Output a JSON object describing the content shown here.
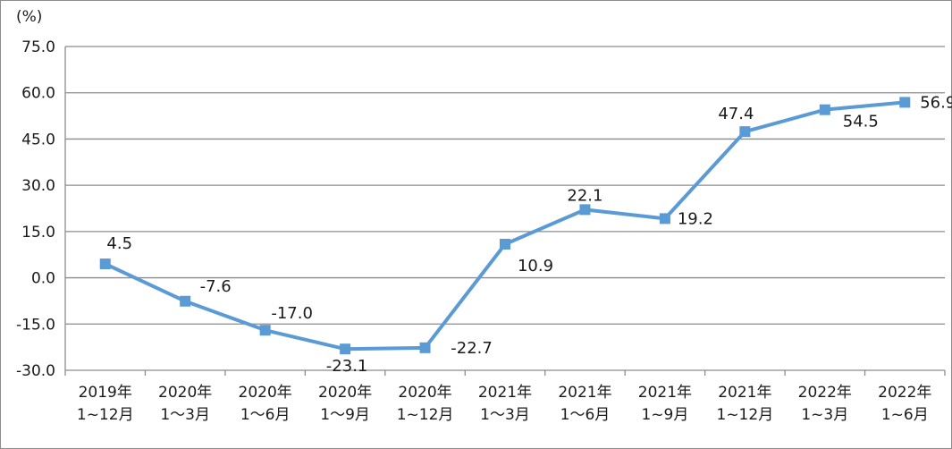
{
  "chart_data": {
    "type": "line",
    "unit_label": "(%)",
    "categories": [
      [
        "2019年",
        "1~12月"
      ],
      [
        "2020年",
        "1～3月"
      ],
      [
        "2020年",
        "1～6月"
      ],
      [
        "2020年",
        "1～9月"
      ],
      [
        "2020年",
        "1~12月"
      ],
      [
        "2021年",
        "1～3月"
      ],
      [
        "2021年",
        "1～6月"
      ],
      [
        "2021年",
        "1~9月"
      ],
      [
        "2021年",
        "1~12月"
      ],
      [
        "2022年",
        "1~3月"
      ],
      [
        "2022年",
        "1~6月"
      ]
    ],
    "values": [
      4.5,
      -7.6,
      -17.0,
      -23.1,
      -22.7,
      10.9,
      22.1,
      19.2,
      47.4,
      54.5,
      56.9
    ],
    "value_labels": [
      "4.5",
      "-7.6",
      "-17.0",
      "-23.1",
      "-22.7",
      "10.9",
      "22.1",
      "19.2",
      "47.4",
      "54.5",
      "56.9"
    ],
    "ylim": [
      -30.0,
      75.0
    ],
    "yticks": [
      "75.0",
      "60.0",
      "45.0",
      "30.0",
      "15.0",
      "0.0",
      "-15.0",
      "-30.0"
    ],
    "ytick_values": [
      75,
      60,
      45,
      30,
      15,
      0,
      -15,
      -30
    ],
    "grid": true,
    "legend": "none",
    "colors": {
      "line": "#5b9bd5",
      "marker": "#5b9bd5",
      "grid": "#8c8c8c"
    }
  }
}
